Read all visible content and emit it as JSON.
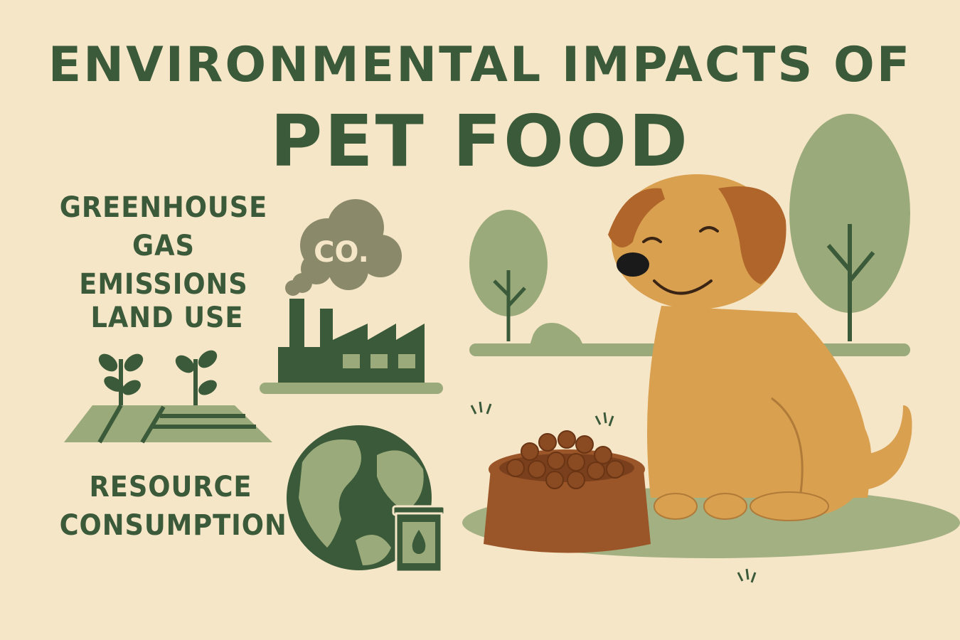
{
  "title": {
    "line1": "ENVIRONMENTAL IMPACTS OF",
    "line2": "PET FOOD"
  },
  "impacts": [
    {
      "label_lines": [
        "GREENHOUSE",
        "GAS EMISSIONS"
      ],
      "icon": "factory-co2-cloud-icon"
    },
    {
      "label_lines": [
        "LAND USE"
      ],
      "icon": "farmland-sprouts-icon"
    },
    {
      "label_lines": [
        "RESOURCE",
        "CONSUMPTION"
      ],
      "icon": "globe-oil-can-icon"
    }
  ],
  "cloud_text": "CO.",
  "colors": {
    "background": "#f6e6c8",
    "dark_green": "#3b5a3a",
    "light_green": "#9aaa7a",
    "smoke": "#8a8a6a",
    "dog": "#d9a050",
    "dog_ear": "#b0652a",
    "bowl": "#9a5528"
  }
}
